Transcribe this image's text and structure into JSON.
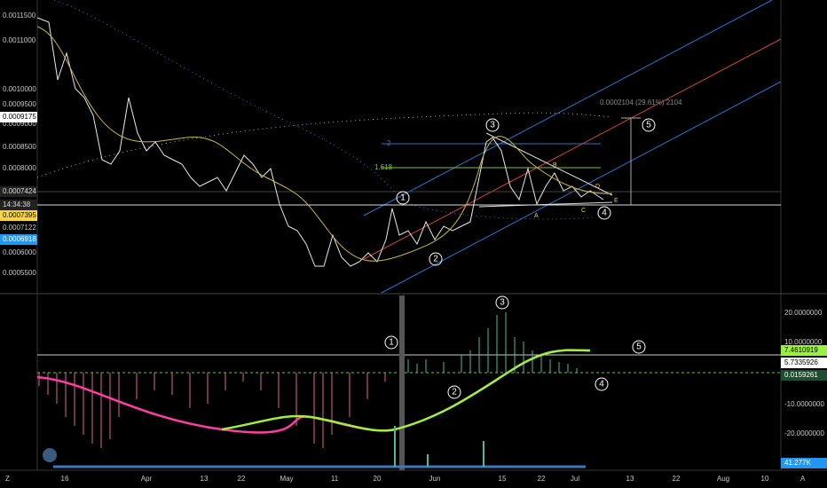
{
  "price_axis": [
    "0.0011500",
    "0.0011000",
    "0.0010000",
    "0.0009500",
    "0.0009000",
    "0.0008500",
    "0.0008000",
    "0.0007122",
    "0.0006000",
    "0.0005500"
  ],
  "price_badges": {
    "high": "0.0009175",
    "last": "0.0007424",
    "clock": "14:34:38",
    "yellow": "0.0007395",
    "blue": "0.0006918"
  },
  "indicator_axis": [
    "20.0000000",
    "10.0000000",
    "-10.0000000",
    "-20.0000000"
  ],
  "indicator_badges": {
    "green": "7.4610919",
    "white": "5.7335926",
    "dark": "0.0159261",
    "volume": "41.277K"
  },
  "time_axis": [
    "16",
    "Apr",
    "13",
    "22",
    "May",
    "11",
    "20",
    "Jun",
    "15",
    "22",
    "Jul",
    "13",
    "22",
    "Aug",
    "10"
  ],
  "waves_top": [
    "1",
    "2",
    "3",
    "4",
    "5"
  ],
  "waves_bottom": [
    "1",
    "2",
    "3",
    "4",
    "5"
  ],
  "fib": [
    "2",
    "1.618"
  ],
  "corrective": [
    "A",
    "B",
    "C",
    "D",
    "E"
  ],
  "measure": "0.0002104 (29.61%) 2104",
  "corner": {
    "left": "Z",
    "right": "A"
  }
}
